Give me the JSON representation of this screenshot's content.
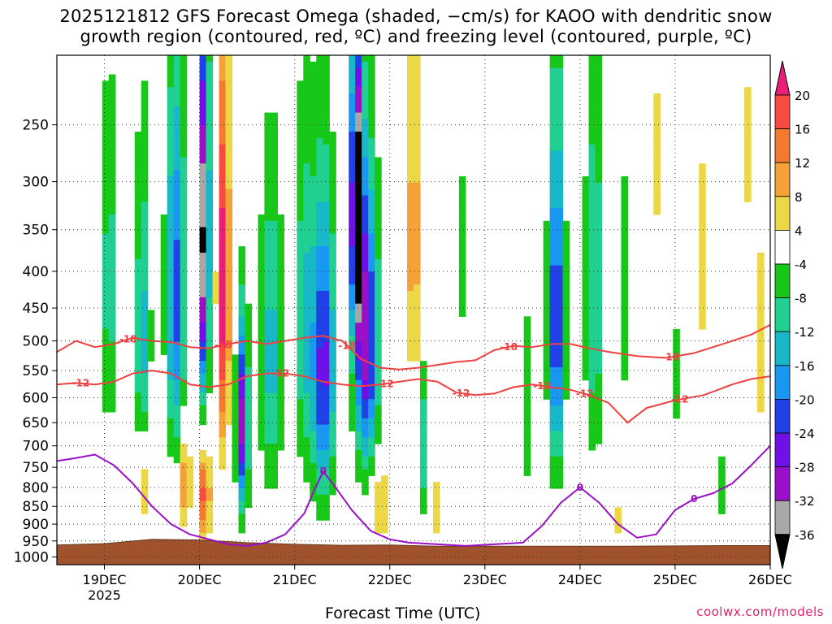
{
  "title": {
    "line1": "2025121812 GFS Forecast Omega (shaded, −cm/s) for KAOO with dendritic snow",
    "line2": "growth region (contoured, red, ºC) and freezing level (contoured, purple, ºC)"
  },
  "credit": "coolwx.com/models",
  "colors": {
    "snow_growth_contour": "#f04040",
    "freezing_contour": "#9a10c8",
    "terrain": "#a0522d",
    "grid": "#333333"
  },
  "chart_data": {
    "type": "heatmap",
    "title": "2025121812 GFS Forecast Omega (shaded, −cm/s) for KAOO with dendritic snow growth region (contoured, red, ºC) and freezing level (contoured, purple, ºC)",
    "xlabel": "Forecast Time (UTC)",
    "ylabel": "",
    "x_ticks": [
      "19DEC",
      "20DEC",
      "21DEC",
      "22DEC",
      "23DEC",
      "24DEC",
      "25DEC",
      "26DEC"
    ],
    "x_year_label": "2025",
    "y_ticks": [
      250,
      300,
      350,
      400,
      450,
      500,
      550,
      600,
      650,
      700,
      750,
      800,
      850,
      900,
      950,
      1000
    ],
    "y_scale": "log-pressure",
    "xlim_days": [
      18.5,
      26.0
    ],
    "ylim_hpa": [
      200,
      1025
    ],
    "grid": true,
    "colorbar": {
      "ticks": [
        20,
        16,
        12,
        8,
        4,
        -4,
        -8,
        -12,
        -16,
        -20,
        -24,
        -28,
        -32,
        -36
      ],
      "bins": [
        {
          "lo": 20,
          "hi": null,
          "color": "#e81e78"
        },
        {
          "lo": 16,
          "hi": 20,
          "color": "#f84a40"
        },
        {
          "lo": 12,
          "hi": 16,
          "color": "#f47a30"
        },
        {
          "lo": 8,
          "hi": 12,
          "color": "#f4a238"
        },
        {
          "lo": 4,
          "hi": 8,
          "color": "#ecd846"
        },
        {
          "lo": -4,
          "hi": 4,
          "color": "#ffffff"
        },
        {
          "lo": -8,
          "hi": -4,
          "color": "#18c818"
        },
        {
          "lo": -12,
          "hi": -8,
          "color": "#20d090"
        },
        {
          "lo": -16,
          "hi": -12,
          "color": "#18b8c8"
        },
        {
          "lo": -20,
          "hi": -16,
          "color": "#1898f0"
        },
        {
          "lo": -24,
          "hi": -20,
          "color": "#2040e8"
        },
        {
          "lo": -28,
          "hi": -24,
          "color": "#7010e8"
        },
        {
          "lo": -32,
          "hi": -28,
          "color": "#9a10c8"
        },
        {
          "lo": -36,
          "hi": -32,
          "color": "#a8a8a8"
        },
        {
          "lo": null,
          "hi": -36,
          "color": "#000000"
        }
      ]
    },
    "contour_labels": {
      "snow_growth": [
        "-18",
        "-18",
        "-18",
        "-18",
        "-18",
        "-12",
        "-12",
        "-12",
        "-12",
        "-12",
        "-12",
        "-12"
      ],
      "freezing": [
        "0",
        "0",
        "0"
      ]
    },
    "omega_blobs": [
      {
        "day": 19.05,
        "p": 420,
        "wd": 0.1,
        "hp": 230,
        "val": -10
      },
      {
        "day": 19.4,
        "p": 500,
        "wd": 0.08,
        "hp": 260,
        "val": -14
      },
      {
        "day": 19.4,
        "p": 780,
        "wd": 0.06,
        "hp": 140,
        "val": 10
      },
      {
        "day": 19.75,
        "p": 430,
        "wd": 0.1,
        "hp": 250,
        "val": -22
      },
      {
        "day": 19.85,
        "p": 780,
        "wd": 0.05,
        "hp": 130,
        "val": 14
      },
      {
        "day": 20.05,
        "p": 360,
        "wd": 0.05,
        "hp": 220,
        "val": -40
      },
      {
        "day": 20.05,
        "p": 820,
        "wd": 0.06,
        "hp": 120,
        "val": 18
      },
      {
        "day": 20.25,
        "p": 420,
        "wd": 0.06,
        "hp": 250,
        "val": 24
      },
      {
        "day": 20.45,
        "p": 650,
        "wd": 0.06,
        "hp": 200,
        "val": -30
      },
      {
        "day": 20.75,
        "p": 520,
        "wd": 0.12,
        "hp": 260,
        "val": -14
      },
      {
        "day": 21.1,
        "p": 470,
        "wd": 0.1,
        "hp": 260,
        "val": -12
      },
      {
        "day": 21.3,
        "p": 540,
        "wd": 0.12,
        "hp": 260,
        "val": -26
      },
      {
        "day": 21.65,
        "p": 320,
        "wd": 0.06,
        "hp": 150,
        "val": -40
      },
      {
        "day": 21.75,
        "p": 500,
        "wd": 0.12,
        "hp": 230,
        "val": -30
      },
      {
        "day": 21.9,
        "p": 840,
        "wd": 0.1,
        "hp": 110,
        "val": 8
      },
      {
        "day": 22.25,
        "p": 360,
        "wd": 0.05,
        "hp": 200,
        "val": 14
      },
      {
        "day": 22.35,
        "p": 700,
        "wd": 0.04,
        "hp": 160,
        "val": -12
      },
      {
        "day": 22.5,
        "p": 850,
        "wd": 0.08,
        "hp": 110,
        "val": 6
      },
      {
        "day": 22.75,
        "p": 380,
        "wd": 0.05,
        "hp": 140,
        "val": -6
      },
      {
        "day": 23.0,
        "p": 340,
        "wd": 0.05,
        "hp": 110,
        "val": 5
      },
      {
        "day": 23.45,
        "p": 620,
        "wd": 0.06,
        "hp": 250,
        "val": -6
      },
      {
        "day": 23.75,
        "p": 470,
        "wd": 0.08,
        "hp": 260,
        "val": -26
      },
      {
        "day": 24.15,
        "p": 430,
        "wd": 0.1,
        "hp": 280,
        "val": -12
      },
      {
        "day": 24.45,
        "p": 430,
        "wd": 0.06,
        "hp": 230,
        "val": -6
      },
      {
        "day": 24.4,
        "p": 880,
        "wd": 0.06,
        "hp": 80,
        "val": 5
      },
      {
        "day": 24.8,
        "p": 280,
        "wd": 0.07,
        "hp": 120,
        "val": 5
      },
      {
        "day": 25.0,
        "p": 560,
        "wd": 0.08,
        "hp": 120,
        "val": -6
      },
      {
        "day": 25.3,
        "p": 380,
        "wd": 0.04,
        "hp": 200,
        "val": 6
      },
      {
        "day": 25.5,
        "p": 800,
        "wd": 0.08,
        "hp": 120,
        "val": -6
      },
      {
        "day": 25.75,
        "p": 270,
        "wd": 0.05,
        "hp": 120,
        "val": 5
      },
      {
        "day": 25.9,
        "p": 500,
        "wd": 0.05,
        "hp": 260,
        "val": 5
      }
    ],
    "dgz_minus18_curve": [
      [
        18.5,
        518
      ],
      [
        18.7,
        500
      ],
      [
        18.9,
        510
      ],
      [
        19.1,
        505
      ],
      [
        19.3,
        495
      ],
      [
        19.5,
        500
      ],
      [
        19.7,
        502
      ],
      [
        19.9,
        510
      ],
      [
        20.1,
        512
      ],
      [
        20.3,
        505
      ],
      [
        20.5,
        500
      ],
      [
        20.7,
        505
      ],
      [
        20.9,
        500
      ],
      [
        21.1,
        495
      ],
      [
        21.3,
        492
      ],
      [
        21.5,
        500
      ],
      [
        21.7,
        530
      ],
      [
        21.9,
        545
      ],
      [
        22.1,
        548
      ],
      [
        22.3,
        545
      ],
      [
        22.5,
        540
      ],
      [
        22.7,
        535
      ],
      [
        22.9,
        532
      ],
      [
        23.1,
        515
      ],
      [
        23.3,
        508
      ],
      [
        23.5,
        510
      ],
      [
        23.7,
        505
      ],
      [
        23.9,
        505
      ],
      [
        24.1,
        512
      ],
      [
        24.3,
        518
      ],
      [
        24.6,
        525
      ],
      [
        24.9,
        528
      ],
      [
        25.2,
        520
      ],
      [
        25.5,
        505
      ],
      [
        25.8,
        490
      ],
      [
        26.0,
        475
      ]
    ],
    "dgz_minus12_curve": [
      [
        18.5,
        575
      ],
      [
        18.7,
        572
      ],
      [
        18.9,
        575
      ],
      [
        19.1,
        570
      ],
      [
        19.3,
        555
      ],
      [
        19.5,
        550
      ],
      [
        19.7,
        555
      ],
      [
        19.9,
        575
      ],
      [
        20.1,
        580
      ],
      [
        20.3,
        575
      ],
      [
        20.5,
        560
      ],
      [
        20.7,
        555
      ],
      [
        20.9,
        555
      ],
      [
        21.1,
        560
      ],
      [
        21.3,
        570
      ],
      [
        21.5,
        575
      ],
      [
        21.7,
        578
      ],
      [
        21.9,
        575
      ],
      [
        22.1,
        570
      ],
      [
        22.3,
        565
      ],
      [
        22.5,
        570
      ],
      [
        22.7,
        590
      ],
      [
        22.9,
        595
      ],
      [
        23.1,
        592
      ],
      [
        23.3,
        580
      ],
      [
        23.5,
        575
      ],
      [
        23.7,
        580
      ],
      [
        23.9,
        585
      ],
      [
        24.1,
        595
      ],
      [
        24.3,
        610
      ],
      [
        24.5,
        650
      ],
      [
        24.7,
        620
      ],
      [
        25.0,
        605
      ],
      [
        25.3,
        595
      ],
      [
        25.6,
        575
      ],
      [
        25.8,
        565
      ],
      [
        26.0,
        560
      ]
    ],
    "freezing_level_curve": [
      [
        18.5,
        735
      ],
      [
        18.7,
        728
      ],
      [
        18.9,
        720
      ],
      [
        19.1,
        745
      ],
      [
        19.3,
        790
      ],
      [
        19.5,
        850
      ],
      [
        19.7,
        900
      ],
      [
        19.9,
        930
      ],
      [
        20.1,
        945
      ],
      [
        20.3,
        960
      ],
      [
        20.5,
        965
      ],
      [
        20.7,
        955
      ],
      [
        20.9,
        930
      ],
      [
        21.1,
        870
      ],
      [
        21.2,
        810
      ],
      [
        21.3,
        760
      ],
      [
        21.4,
        790
      ],
      [
        21.6,
        860
      ],
      [
        21.8,
        920
      ],
      [
        22.0,
        945
      ],
      [
        22.2,
        955
      ],
      [
        22.5,
        960
      ],
      [
        22.8,
        965
      ],
      [
        23.1,
        960
      ],
      [
        23.4,
        955
      ],
      [
        23.6,
        905
      ],
      [
        23.8,
        840
      ],
      [
        24.0,
        800
      ],
      [
        24.2,
        840
      ],
      [
        24.4,
        900
      ],
      [
        24.6,
        940
      ],
      [
        24.8,
        930
      ],
      [
        25.0,
        860
      ],
      [
        25.2,
        830
      ],
      [
        25.4,
        815
      ],
      [
        25.6,
        790
      ],
      [
        25.8,
        745
      ],
      [
        26.0,
        700
      ]
    ],
    "terrain_pressure_hpa": [
      [
        18.5,
        962
      ],
      [
        19.0,
        958
      ],
      [
        19.5,
        945
      ],
      [
        20.0,
        947
      ],
      [
        20.5,
        955
      ],
      [
        21.0,
        960
      ],
      [
        21.5,
        963
      ],
      [
        22.0,
        962
      ],
      [
        22.5,
        966
      ],
      [
        23.0,
        966
      ],
      [
        23.5,
        966
      ],
      [
        24.0,
        966
      ],
      [
        24.5,
        966
      ],
      [
        25.0,
        965
      ],
      [
        25.5,
        964
      ],
      [
        26.0,
        964
      ]
    ]
  }
}
